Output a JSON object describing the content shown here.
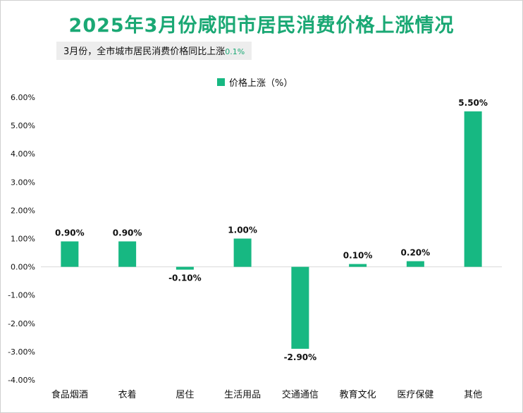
{
  "title": "2025年3月份咸阳市居民消费价格上涨情况",
  "subtitle": {
    "text": "3月份，全市城市居民消费价格同比上涨",
    "value": "0.1%"
  },
  "colors": {
    "bar": "#17b882",
    "title": "#1aa874",
    "axis": "#d9d9d9",
    "text": "#111111"
  },
  "chart_data": {
    "type": "bar",
    "title": "2025年3月份咸阳市居民消费价格上涨情况",
    "subtitle": "3月份，全市城市居民消费价格同比上涨0.1%",
    "categories": [
      "食品烟酒",
      "衣着",
      "居住",
      "生活用品",
      "交通通信",
      "教育文化",
      "医疗保健",
      "其他"
    ],
    "series": [
      {
        "name": "价格上涨（%）",
        "values": [
          0.9,
          0.9,
          -0.1,
          1.0,
          -2.9,
          0.1,
          0.2,
          5.5
        ],
        "labels": [
          "0.90%",
          "0.90%",
          "-0.10%",
          "1.00%",
          "-2.90%",
          "0.10%",
          "0.20%",
          "5.50%"
        ]
      }
    ],
    "ylim": [
      -4,
      6
    ],
    "yticks": [
      6,
      5,
      4,
      3,
      2,
      1,
      0,
      -1,
      -2,
      -3,
      -4
    ],
    "ytick_labels": [
      "6.00%",
      "5.00%",
      "4.00%",
      "3.00%",
      "2.00%",
      "1.00%",
      "0.00%",
      "-1.00%",
      "-2.00%",
      "-3.00%",
      "-4.00%"
    ],
    "grid": false,
    "legend": "top-center"
  }
}
